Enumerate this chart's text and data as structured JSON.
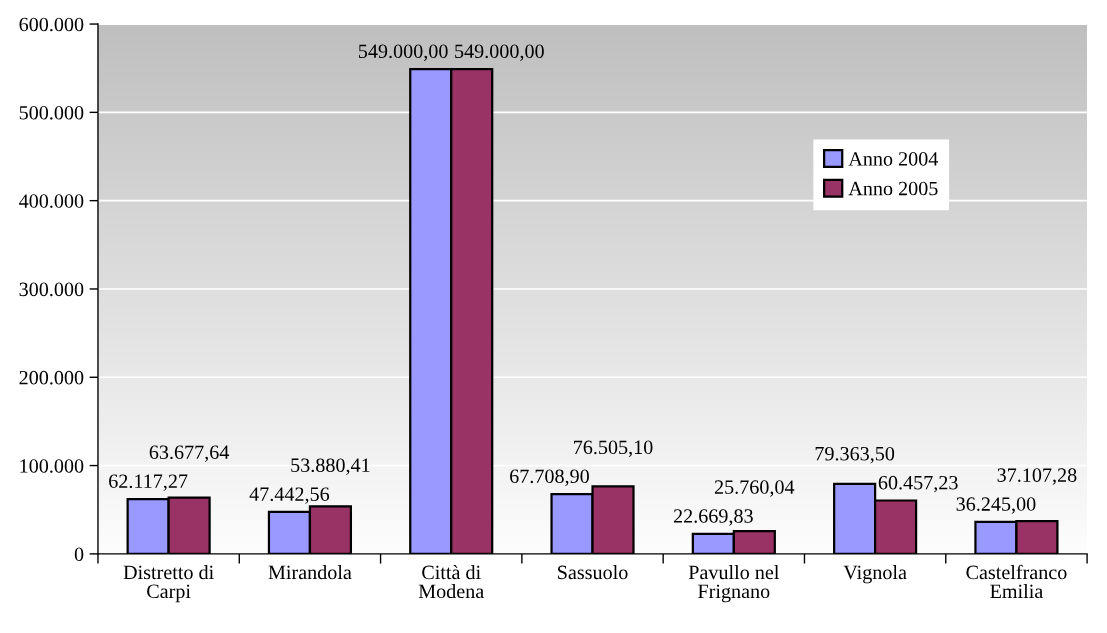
{
  "chart_data": {
    "type": "bar",
    "categories": [
      "Distretto di Carpi",
      "Mirandola",
      "Città di Modena",
      "Sassuolo",
      "Pavullo nel Frignano",
      "Vignola",
      "Castelfranco Emilia"
    ],
    "series": [
      {
        "name": "Anno 2004",
        "color": "#9999ff",
        "values": [
          62117.27,
          47442.56,
          549000.0,
          67708.9,
          22669.83,
          79363.5,
          36245.0
        ],
        "value_labels": [
          "62.117,27",
          "47.442,56",
          "549.000,00",
          "67.708,90",
          "22.669,83",
          "79.363,50",
          "36.245,00"
        ]
      },
      {
        "name": "Anno 2005",
        "color": "#993366",
        "values": [
          63677.64,
          53880.41,
          549000.0,
          76505.1,
          25760.04,
          60457.23,
          37107.28
        ],
        "value_labels": [
          "63.677,64",
          "53.880,41",
          "549.000,00",
          "76.505,10",
          "25.760,04",
          "60.457,23",
          "37.107,28"
        ]
      }
    ],
    "ylim": [
      0,
      600000
    ],
    "yticks": [
      0,
      {
        "value": 100000,
        "label": "100.000"
      },
      {
        "value": 200000,
        "label": "200.000"
      },
      {
        "value": 300000,
        "label": "300.000"
      },
      {
        "value": 400000,
        "label": "400.000"
      },
      {
        "value": 500000,
        "label": "500.000"
      },
      {
        "value": 600000,
        "label": "600.000"
      }
    ],
    "grid": "y",
    "legend": "top right"
  }
}
